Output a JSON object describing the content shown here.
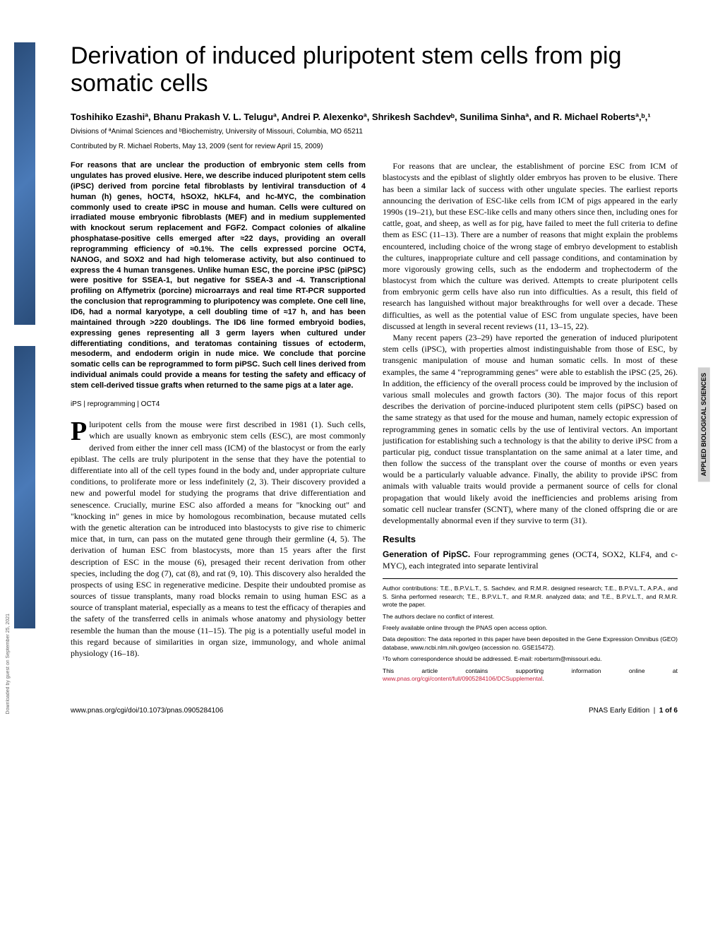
{
  "title": "Derivation of induced pluripotent stem cells from pig somatic cells",
  "authors": "Toshihiko Ezashiª, Bhanu Prakash V. L. Teluguª, Andrei P. Alexenkoª, Shrikesh Sachdevᵇ, Sunilima Sinhaª, and R. Michael Robertsª,ᵇ,¹",
  "affiliations": "Divisions of ªAnimal Sciences and ᵇBiochemistry, University of Missouri, Columbia, MO 65211",
  "contributed": "Contributed by R. Michael Roberts, May 13, 2009 (sent for review April 15, 2009)",
  "abstract": "For reasons that are unclear the production of embryonic stem cells from ungulates has proved elusive. Here, we describe induced pluripotent stem cells (iPSC) derived from porcine fetal fibroblasts by lentiviral transduction of 4 human (h) genes, hOCT4, hSOX2, hKLF4, and hc-MYC, the combination commonly used to create iPSC in mouse and human. Cells were cultured on irradiated mouse embryonic fibroblasts (MEF) and in medium supplemented with knockout serum replacement and FGF2. Compact colonies of alkaline phosphatase-positive cells emerged after ≈22 days, providing an overall reprogramming efficiency of ≈0.1%. The cells expressed porcine OCT4, NANOG, and SOX2 and had high telomerase activity, but also continued to express the 4 human transgenes. Unlike human ESC, the porcine iPSC (piPSC) were positive for SSEA-1, but negative for SSEA-3 and -4. Transcriptional profiling on Affymetrix (porcine) microarrays and real time RT-PCR supported the conclusion that reprogramming to pluripotency was complete. One cell line, ID6, had a normal karyotype, a cell doubling time of ≈17 h, and has been maintained through >220 doublings. The ID6 line formed embryoid bodies, expressing genes representing all 3 germ layers when cultured under differentiating conditions, and teratomas containing tissues of ectoderm, mesoderm, and endoderm origin in nude mice. We conclude that porcine somatic cells can be reprogrammed to form piPSC. Such cell lines derived from individual animals could provide a means for testing the safety and efficacy of stem cell-derived tissue grafts when returned to the same pigs at a later age.",
  "keywords": "iPS | reprogramming | OCT4",
  "col1_body": {
    "p1": "luripotent cells from the mouse were first described in 1981 (1). Such cells, which are usually known as embryonic stem cells (ESC), are most commonly derived from either the inner cell mass (ICM) of the blastocyst or from the early epiblast. The cells are truly pluripotent in the sense that they have the potential to differentiate into all of the cell types found in the body and, under appropriate culture conditions, to proliferate more or less indefinitely (2, 3). Their discovery provided a new and powerful model for studying the programs that drive differentiation and senescence. Crucially, murine ESC also afforded a means for \"knocking out\" and \"knocking in\" genes in mice by homologous recombination, because mutated cells with the genetic alteration can be introduced into blastocysts to give rise to chimeric mice that, in turn, can pass on the mutated gene through their germline (4, 5). The derivation of human ESC from blastocysts, more than 15 years after the first description of ESC in the mouse (6), presaged their recent derivation from other species, including the dog (7), cat (8), and rat (9, 10). This discovery also heralded the prospects of using ESC in regenerative medicine. Despite their undoubted promise as sources of tissue transplants, many road blocks remain to using human ESC as a source of transplant material, especially as a means to test the efficacy of therapies and the safety of the transferred cells in animals whose anatomy and physiology better resemble the human than the mouse (11–15). The pig is a potentially useful model in this regard because of similarities in organ size, immunology, and whole animal physiology (16–18)."
  },
  "col2_body": {
    "p1": "For reasons that are unclear, the establishment of porcine ESC from ICM of blastocysts and the epiblast of slightly older embryos has proven to be elusive. There has been a similar lack of success with other ungulate species. The earliest reports announcing the derivation of ESC-like cells from ICM of pigs appeared in the early 1990s (19–21), but these ESC-like cells and many others since then, including ones for cattle, goat, and sheep, as well as for pig, have failed to meet the full criteria to define them as ESC (11–13). There are a number of reasons that might explain the problems encountered, including choice of the wrong stage of embryo development to establish the cultures, inappropriate culture and cell passage conditions, and contamination by more vigorously growing cells, such as the endoderm and trophectoderm of the blastocyst from which the culture was derived. Attempts to create pluripotent cells from embryonic germ cells have also run into difficulties. As a result, this field of research has languished without major breakthroughs for well over a decade. These difficulties, as well as the potential value of ESC from ungulate species, have been discussed at length in several recent reviews (11, 13–15, 22).",
    "p2": "Many recent papers (23–29) have reported the generation of induced pluripotent stem cells (iPSC), with properties almost indistinguishable from those of ESC, by transgenic manipulation of mouse and human somatic cells. In most of these examples, the same 4 \"reprogramming genes\" were able to establish the iPSC (25, 26). In addition, the efficiency of the overall process could be improved by the inclusion of various small molecules and growth factors (30). The major focus of this report describes the derivation of porcine-induced pluripotent stem cells (piPSC) based on the same strategy as that used for the mouse and human, namely ectopic expression of reprogramming genes in somatic cells by the use of lentiviral vectors. An important justification for establishing such a technology is that the ability to derive iPSC from a particular pig, conduct tissue transplantation on the same animal at a later time, and then follow the success of the transplant over the course of months or even years would be a particularly valuable advance. Finally, the ability to provide iPSC from animals with valuable traits would provide a permanent source of cells for clonal propagation that would likely avoid the inefficiencies and problems arising from somatic cell nuclear transfer (SCNT), where many of the cloned offspring die or are developmentally abnormal even if they survive to term (31)."
  },
  "results_head": "Results",
  "results_sub": "Generation of PipSC.",
  "results_text": " Four reprogramming genes (OCT4, SOX2, KLF4, and c-MYC), each integrated into separate lentiviral",
  "footnotes": {
    "f1": "Author contributions: T.E., B.P.V.L.T., S. Sachdev, and R.M.R. designed research; T.E., B.P.V.L.T., A.P.A., and S. Sinha performed research; T.E., B.P.V.L.T., and R.M.R. analyzed data; and T.E., B.P.V.L.T., and R.M.R. wrote the paper.",
    "f2": "The authors declare no conflict of interest.",
    "f3": "Freely available online through the PNAS open access option.",
    "f4": "Data deposition: The data reported in this paper have been deposited in the Gene Expression Omnibus (GEO) database, www.ncbi.nlm.nih.gov/geo (accession no. GSE15472).",
    "f5": "¹To whom correspondence should be addressed. E-mail: robertsrm@missouri.edu.",
    "f6_pre": "This article contains supporting information online at ",
    "f6_link": "www.pnas.org/cgi/content/full/0905284106/DCSupplemental",
    "f6_post": "."
  },
  "footer": {
    "left": "www.pnas.org/cgi/doi/10.1073/pnas.0905284106",
    "right_label": "PNAS Early Edition",
    "right_page": "1 of 6"
  },
  "side_label": "APPLIED BIOLOGICAL SCIENCES",
  "download_note": "Downloaded by guest on September 25, 2021",
  "dropcap": "P"
}
